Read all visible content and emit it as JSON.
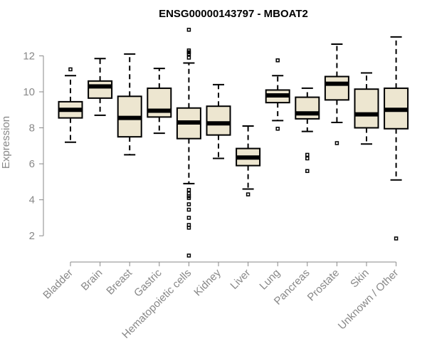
{
  "chart_data": {
    "type": "boxplot",
    "title": "ENSG00000143797 - MBOAT2",
    "xlabel": "",
    "ylabel": "Expression",
    "ylim": [
      0.7,
      13.6
    ],
    "yticks": [
      2,
      4,
      6,
      8,
      10,
      12
    ],
    "grid": false,
    "colors": {
      "box_fill": "#ede6d0",
      "stroke": "#000000",
      "axis": "#888888"
    },
    "categories": [
      "Bladder",
      "Brain",
      "Breast",
      "Gastric",
      "Hematopoietic cells",
      "Kidney",
      "Liver",
      "Lung",
      "Pancreas",
      "Prostate",
      "Skin",
      "Unknown / Other"
    ],
    "boxes": [
      {
        "category": "Bladder",
        "whisker_low": 7.2,
        "q1": 8.55,
        "median": 9.0,
        "q3": 9.45,
        "whisker_high": 10.9,
        "outliers": [
          11.25
        ]
      },
      {
        "category": "Brain",
        "whisker_low": 8.7,
        "q1": 9.65,
        "median": 10.3,
        "q3": 10.6,
        "whisker_high": 11.85,
        "outliers": []
      },
      {
        "category": "Breast",
        "whisker_low": 6.5,
        "q1": 7.5,
        "median": 8.55,
        "q3": 9.75,
        "whisker_high": 12.1,
        "outliers": []
      },
      {
        "category": "Gastric",
        "whisker_low": 7.7,
        "q1": 8.6,
        "median": 8.95,
        "q3": 10.2,
        "whisker_high": 11.3,
        "outliers": []
      },
      {
        "category": "Hematopoietic cells",
        "whisker_low": 4.9,
        "q1": 7.4,
        "median": 8.3,
        "q3": 9.1,
        "whisker_high": 11.6,
        "outliers": [
          13.45,
          12.3,
          12.2,
          12.1,
          11.9,
          4.55,
          4.35,
          4.2,
          4.1,
          3.75,
          3.45,
          3.0,
          2.6,
          2.45,
          0.9
        ]
      },
      {
        "category": "Kidney",
        "whisker_low": 6.3,
        "q1": 7.6,
        "median": 8.25,
        "q3": 9.2,
        "whisker_high": 10.4,
        "outliers": []
      },
      {
        "category": "Liver",
        "whisker_low": 4.6,
        "q1": 5.9,
        "median": 6.35,
        "q3": 6.85,
        "whisker_high": 8.1,
        "outliers": [
          4.3
        ]
      },
      {
        "category": "Lung",
        "whisker_low": 8.4,
        "q1": 9.4,
        "median": 9.8,
        "q3": 10.1,
        "whisker_high": 10.9,
        "outliers": [
          11.75,
          7.95
        ]
      },
      {
        "category": "Pancreas",
        "whisker_low": 7.8,
        "q1": 8.5,
        "median": 8.8,
        "q3": 9.7,
        "whisker_high": 10.2,
        "outliers": [
          6.5,
          6.3,
          5.6
        ]
      },
      {
        "category": "Prostate",
        "whisker_low": 8.3,
        "q1": 9.55,
        "median": 10.45,
        "q3": 10.85,
        "whisker_high": 12.65,
        "outliers": [
          7.15
        ]
      },
      {
        "category": "Skin",
        "whisker_low": 7.1,
        "q1": 8.0,
        "median": 8.75,
        "q3": 10.15,
        "whisker_high": 11.05,
        "outliers": []
      },
      {
        "category": "Unknown / Other",
        "whisker_low": 5.1,
        "q1": 7.95,
        "median": 9.0,
        "q3": 10.2,
        "whisker_high": 13.05,
        "outliers": [
          1.85
        ]
      }
    ]
  }
}
